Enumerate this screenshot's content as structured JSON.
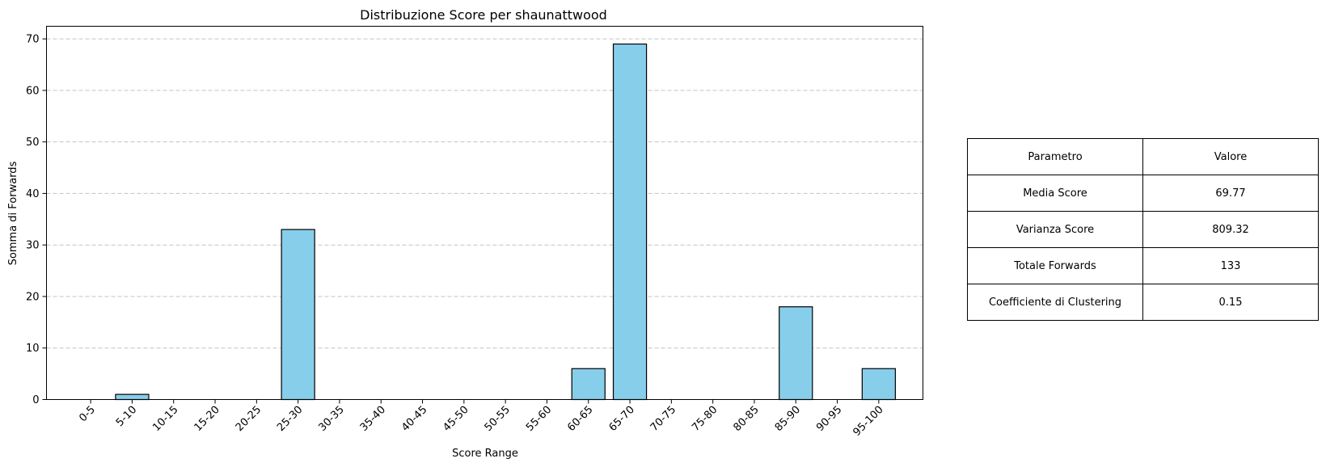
{
  "chart_data": {
    "type": "bar",
    "title": "Distribuzione Score per shaunattwood",
    "xlabel": "Score Range",
    "ylabel": "Somma di Forwards",
    "categories": [
      "0-5",
      "5-10",
      "10-15",
      "15-20",
      "20-25",
      "25-30",
      "30-35",
      "35-40",
      "40-45",
      "45-50",
      "50-55",
      "55-60",
      "60-65",
      "65-70",
      "70-75",
      "75-80",
      "80-85",
      "85-90",
      "90-95",
      "95-100"
    ],
    "values": [
      0,
      1,
      0,
      0,
      0,
      33,
      0,
      0,
      0,
      0,
      0,
      0,
      6,
      69,
      0,
      0,
      0,
      18,
      0,
      6
    ],
    "ylim": [
      0,
      72.45
    ],
    "yticks": [
      0,
      10,
      20,
      30,
      40,
      50,
      60,
      70
    ],
    "grid": "y-dashed",
    "bar_color": "#87CEEB",
    "edge_color": "#000000"
  },
  "table": {
    "header": [
      "Parametro",
      "Valore"
    ],
    "rows": [
      [
        "Media Score",
        "69.77"
      ],
      [
        "Varianza Score",
        "809.32"
      ],
      [
        "Totale Forwards",
        "133"
      ],
      [
        "Coefficiente di Clustering",
        "0.15"
      ]
    ]
  }
}
